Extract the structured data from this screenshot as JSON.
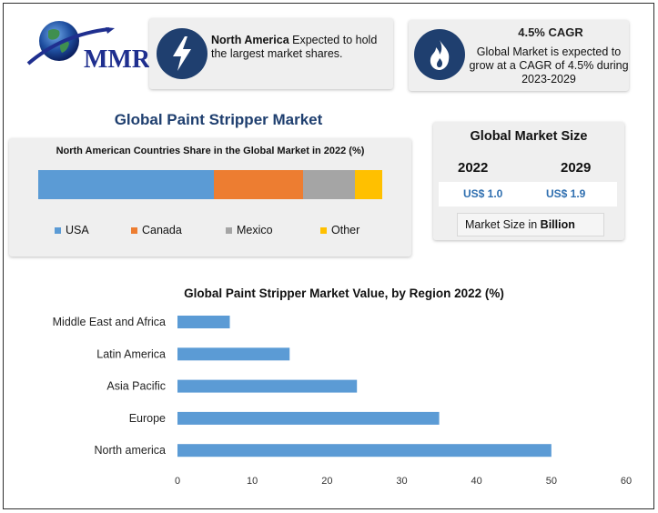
{
  "logo": {
    "text": "MMR",
    "icon": "globe-icon"
  },
  "highlight_na": {
    "icon": "lightning-icon",
    "bold": "North America",
    "text": " Expected to hold the largest market shares."
  },
  "highlight_cagr": {
    "icon": "flame-icon",
    "title": "4.5% CAGR",
    "text": "Global Market is expected to grow at a CAGR of 4.5% during 2023-2029"
  },
  "main_title": "Global Paint Stripper Market",
  "market_size": {
    "title": "Global Market Size",
    "year_start": "2022",
    "year_end": "2029",
    "value_start": "US$ 1.0",
    "value_end": "US$ 1.9",
    "note_prefix": "Market Size in ",
    "note_bold": "Billion"
  },
  "chart_data": [
    {
      "type": "bar",
      "orientation": "stacked-horizontal",
      "title": "North American Countries Share in the Global Market in 2022 (%)",
      "series": [
        {
          "name": "USA",
          "value": 51,
          "color": "#5b9bd5"
        },
        {
          "name": "Canada",
          "value": 26,
          "color": "#ed7d31"
        },
        {
          "name": "Mexico",
          "value": 15,
          "color": "#a5a5a5"
        },
        {
          "name": "Other",
          "value": 8,
          "color": "#ffc000"
        }
      ],
      "legend": "bottom"
    },
    {
      "type": "bar",
      "orientation": "horizontal",
      "title": "Global Paint Stripper Market Value, by Region 2022 (%)",
      "categories": [
        "Middle East and Africa",
        "Latin America",
        "Asia Pacific",
        "Europe",
        "North america"
      ],
      "values": [
        7,
        15,
        24,
        35,
        50
      ],
      "color": "#5b9bd5",
      "xlim": [
        0,
        60
      ],
      "xticks": [
        "0",
        "10",
        "20",
        "30",
        "40",
        "50",
        "60"
      ],
      "grid": false
    }
  ]
}
